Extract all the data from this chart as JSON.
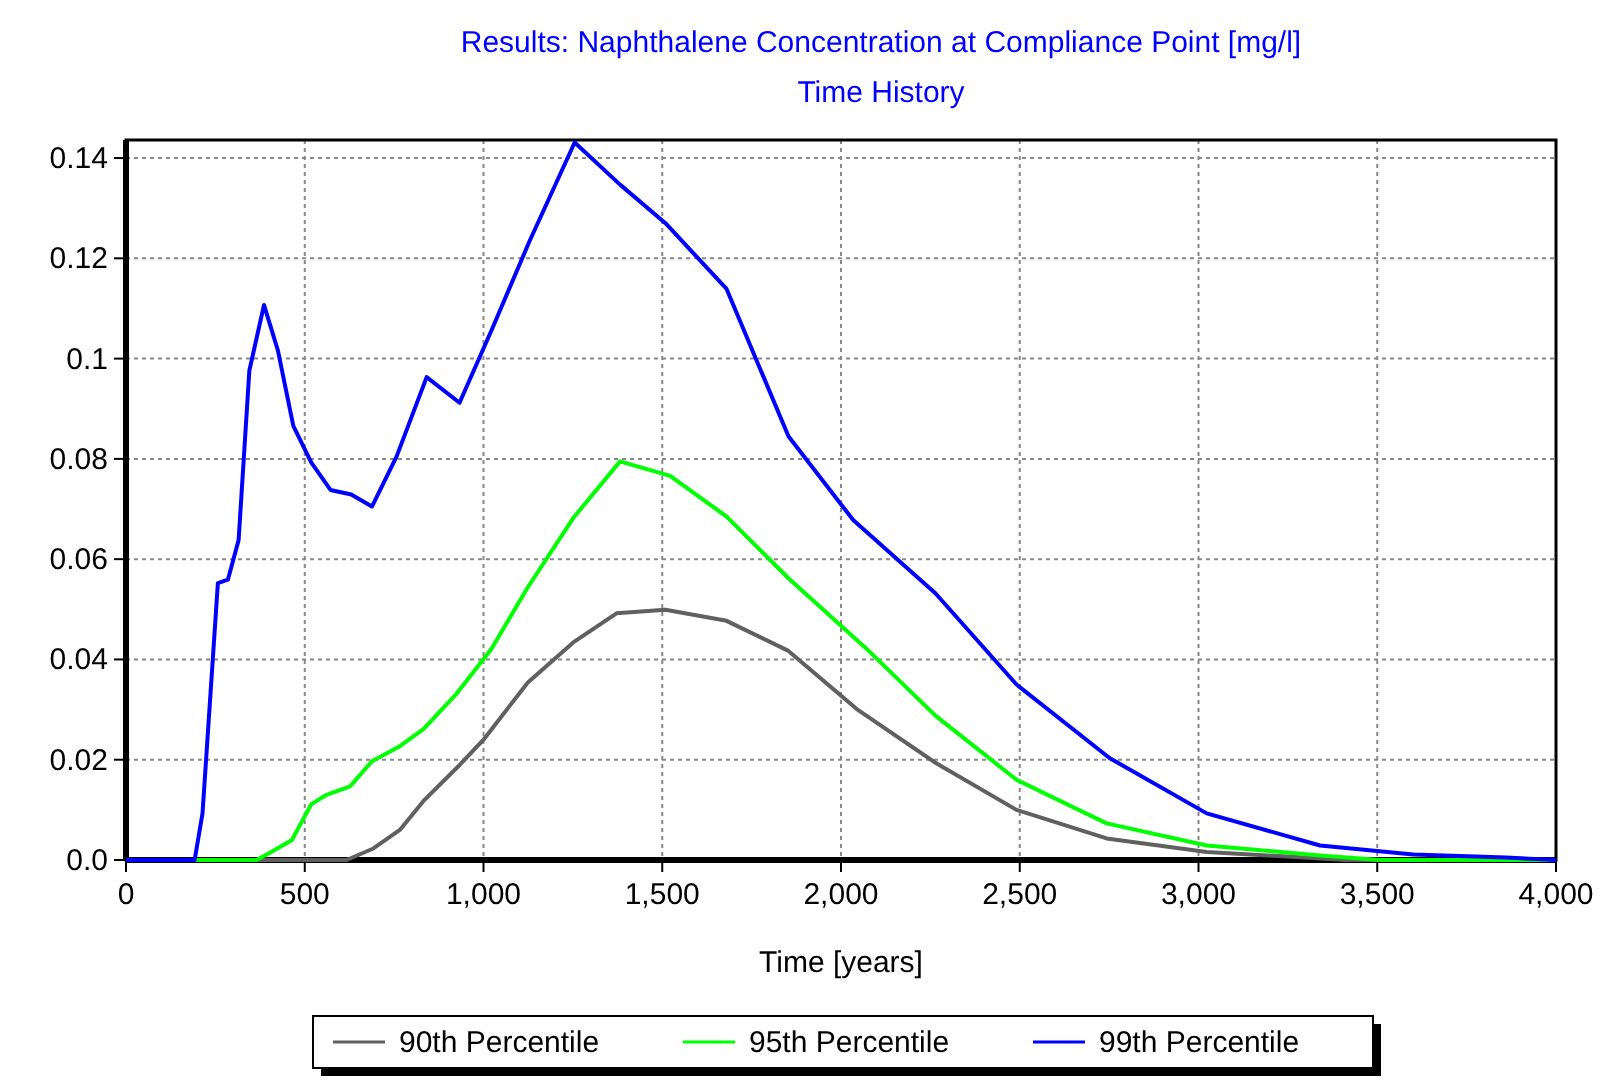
{
  "chart_data": {
    "type": "line",
    "title": "Results: Naphthalene Concentration at Compliance Point [mg/l]",
    "subtitle": "Time History",
    "xlabel": "Time [years]",
    "xlim": [
      0,
      4000
    ],
    "xticks": [
      0,
      500,
      {
        "value": 1000,
        "label": "1,000"
      },
      {
        "value": 1500,
        "label": "1,500"
      },
      {
        "value": 2000,
        "label": "2,000"
      },
      {
        "value": 2500,
        "label": "2,500"
      },
      {
        "value": 3000,
        "label": "3,000"
      },
      {
        "value": 3500,
        "label": "3,500"
      },
      {
        "value": 4000,
        "label": "4,000"
      }
    ],
    "ylim": [
      0,
      0.1436
    ],
    "yticks": [
      {
        "value": 0,
        "label": "0.0"
      },
      0.02,
      0.04,
      0.06,
      0.08,
      0.1,
      0.12,
      0.14
    ],
    "grid": true,
    "legend": "bottom",
    "line_style": "solid",
    "marker": "none",
    "series": [
      {
        "name": "90th Percentile",
        "color": "#606060",
        "x": [
          0,
          617,
          692,
          766,
          835,
          934,
          1000,
          1124,
          1251,
          1372,
          1509,
          1680,
          1853,
          2044,
          2264,
          2491,
          2743,
          3023,
          3413,
          4000
        ],
        "values": [
          0,
          0,
          0.0023,
          0.006,
          0.012,
          0.019,
          0.024,
          0.0354,
          0.0434,
          0.0492,
          0.0499,
          0.0477,
          0.0417,
          0.0301,
          0.0194,
          0.01,
          0.0043,
          0.0016,
          0,
          0
        ]
      },
      {
        "name": "95th Percentile",
        "color": "#00ff00",
        "x": [
          0,
          365,
          416,
          464,
          518,
          561,
          627,
          688,
          766,
          832,
          925,
          1022,
          1124,
          1251,
          1382,
          1522,
          1680,
          1853,
          2072,
          2264,
          2491,
          2743,
          3023,
          3340,
          3508,
          4000
        ],
        "values": [
          0,
          0,
          0.002,
          0.004,
          0.0111,
          0.013,
          0.0147,
          0.0197,
          0.0227,
          0.0261,
          0.0332,
          0.0421,
          0.0544,
          0.0682,
          0.0795,
          0.0766,
          0.0685,
          0.0562,
          0.0421,
          0.0288,
          0.016,
          0.0073,
          0.0029,
          0.0009,
          0,
          0
        ]
      },
      {
        "name": "99th Percentile",
        "color": "#0000ff",
        "x": [
          0,
          192,
          214,
          257,
          285,
          315,
          345,
          386,
          425,
          468,
          518,
          572,
          630,
          688,
          757,
          841,
          933,
          1024,
          1128,
          1255,
          1382,
          1509,
          1680,
          1853,
          2034,
          2264,
          2491,
          2752,
          3023,
          3340,
          3601,
          3860,
          4000
        ],
        "values": [
          0,
          0,
          0.0093,
          0.0552,
          0.0559,
          0.0638,
          0.0976,
          0.1107,
          0.1016,
          0.0866,
          0.0793,
          0.0738,
          0.0729,
          0.0705,
          0.0805,
          0.0963,
          0.0912,
          0.1059,
          0.1233,
          0.1431,
          0.1347,
          0.127,
          0.1139,
          0.0845,
          0.0678,
          0.0532,
          0.035,
          0.0203,
          0.0093,
          0.0029,
          0.0011,
          0.0005,
          0
        ]
      }
    ]
  }
}
